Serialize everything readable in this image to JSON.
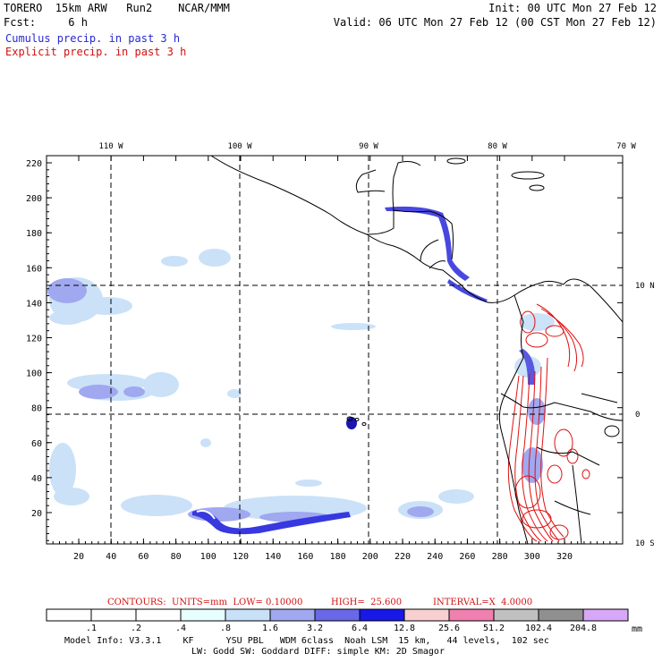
{
  "header": {
    "model_line": "TORERO  15km ARW   Run2    NCAR/MMM",
    "init_line": "Init: 00 UTC Mon 27 Feb 12",
    "fcst_line": "Fcst:     6 h",
    "valid_line": "Valid: 06 UTC Mon 27 Feb 12 (00 CST Mon 27 Feb 12)",
    "cumulus_label": "Cumulus precip. in past 3 h",
    "explicit_label": "Explicit precip. in past 3 h"
  },
  "map": {
    "lon_labels": [
      "110 W",
      "100 W",
      "90 W",
      "80 W",
      "70 W"
    ],
    "lat_labels": [
      "10 N",
      "0",
      "10 S"
    ],
    "y_ticks": [
      "220",
      "200",
      "180",
      "160",
      "140",
      "120",
      "100",
      "80",
      "60",
      "40",
      "20"
    ],
    "x_ticks": [
      "20",
      "40",
      "60",
      "80",
      "100",
      "120",
      "140",
      "160",
      "180",
      "200",
      "220",
      "240",
      "260",
      "280",
      "300",
      "320"
    ]
  },
  "contours": {
    "label": "CONTOURS:  UNITS=mm  LOW= 0.10000",
    "high": "HIGH=  25.600",
    "interval": "INTERVAL=X  4.0000"
  },
  "colorbar": {
    "colors": [
      "#ffffff",
      "#ffffff",
      "#ffffff",
      "#e8ffff",
      "#c8e0f8",
      "#a0a8f0",
      "#6868e8",
      "#1818e8",
      "#f8d0d0",
      "#f080b0",
      "#c0c0c0",
      "#909090",
      "#d8a8f8"
    ],
    "labels": [
      ".1",
      ".2",
      ".4",
      ".8",
      "1.6",
      "3.2",
      "6.4",
      "12.8",
      "25.6",
      "51.2",
      "102.4",
      "204.8"
    ],
    "unit": "mm"
  },
  "footer": {
    "line1": "Model Info: V3.3.1    KF      YSU PBL   WDM 6class  Noah LSM  15 km,   44 levels,  102 sec",
    "line2": "LW: Godd SW: Goddard DIFF: simple KM: 2D Smagor"
  }
}
